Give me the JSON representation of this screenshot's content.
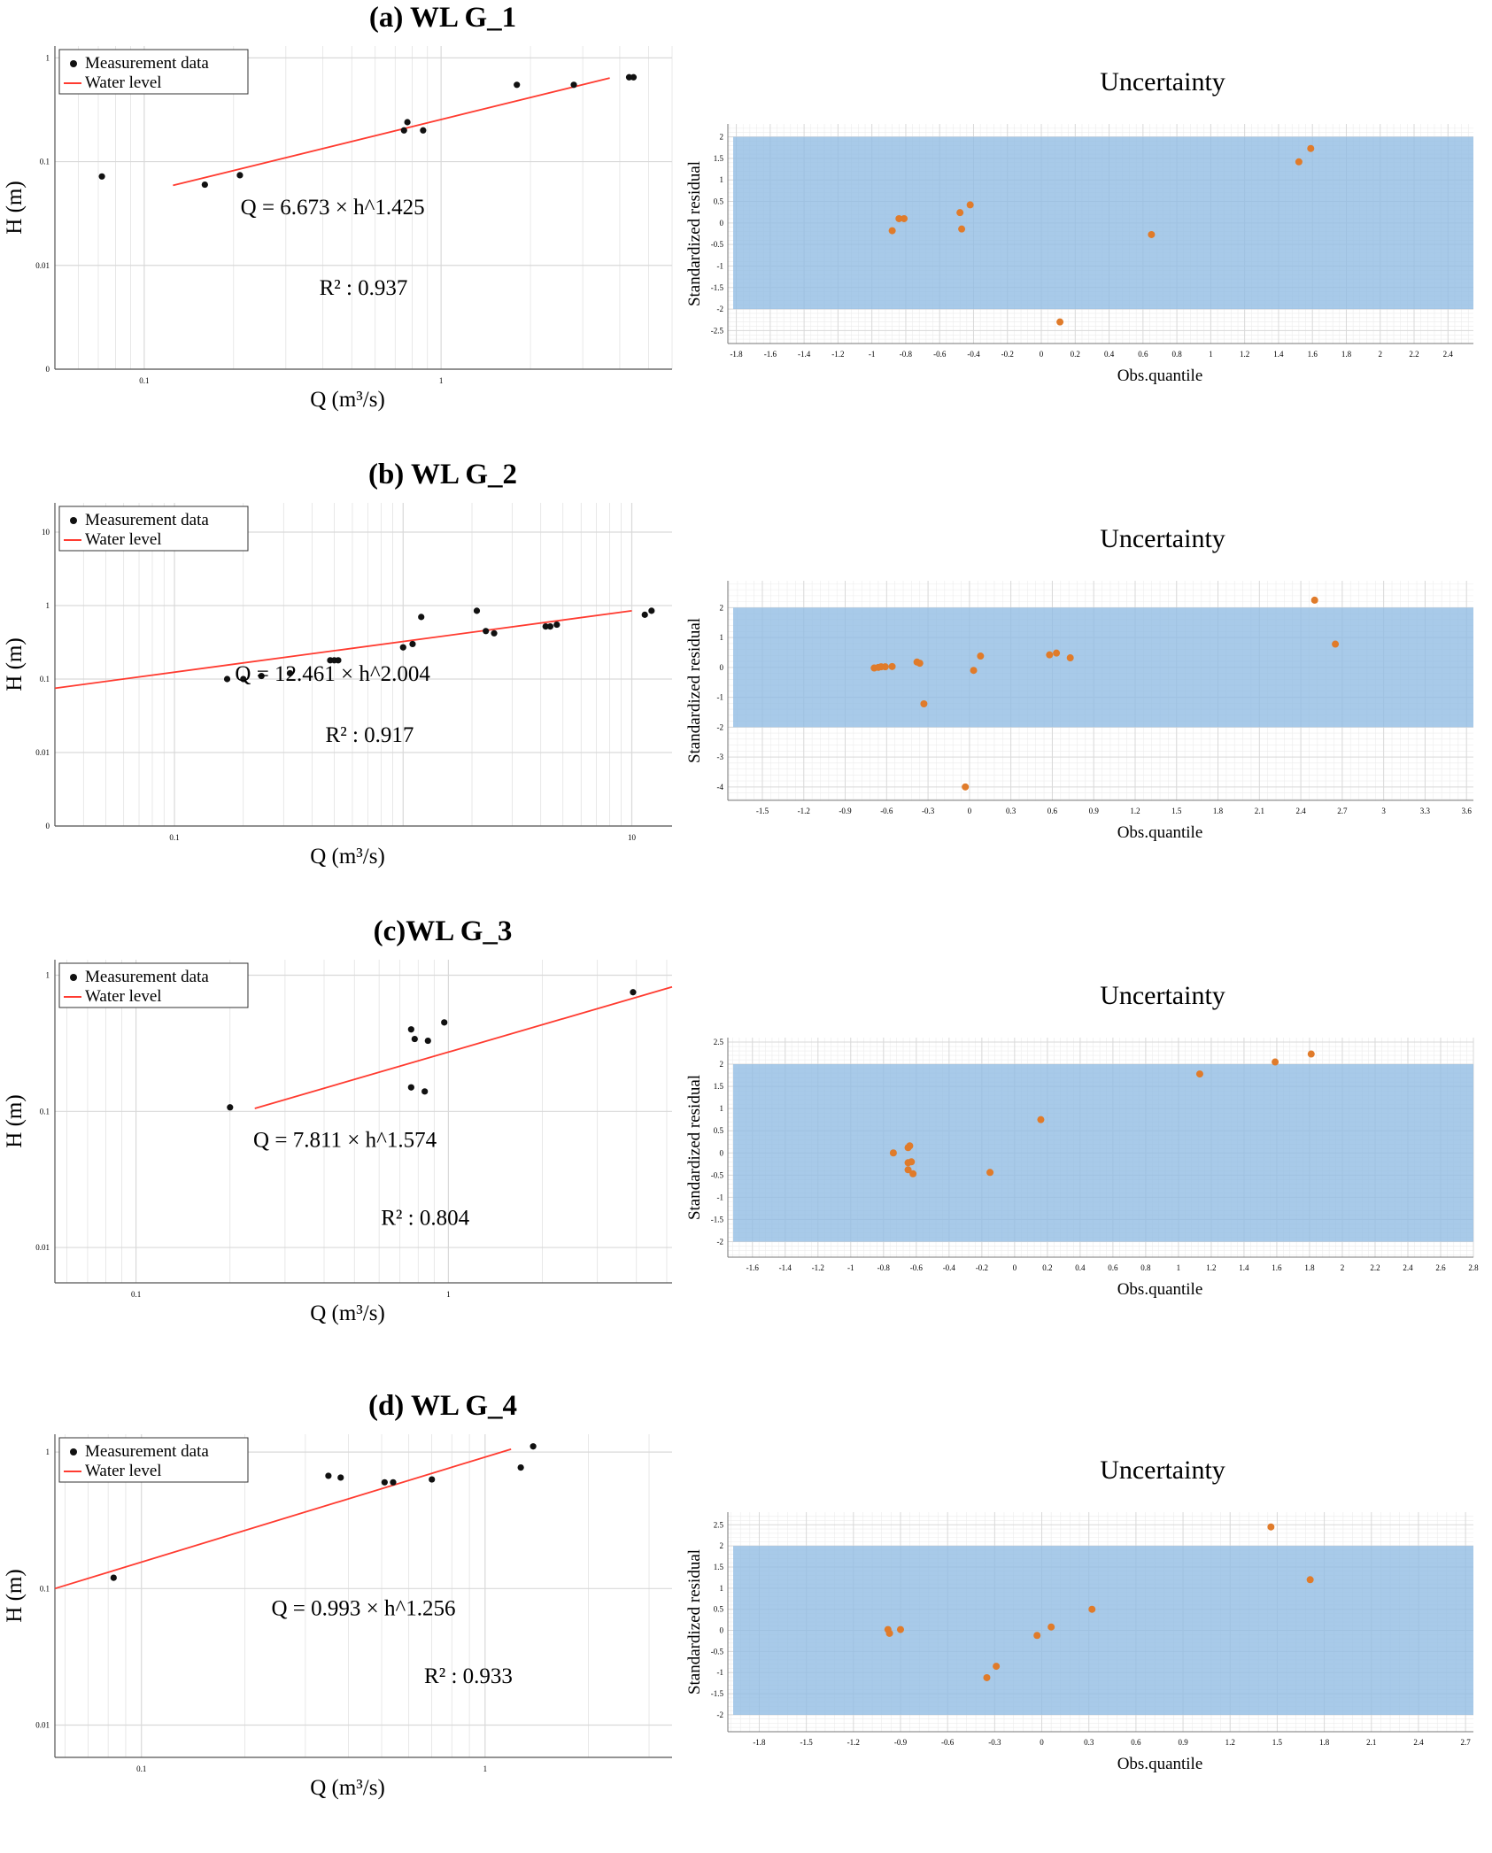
{
  "colors": {
    "measure_dot": "#111111",
    "fit_line": "#ff3b30",
    "band_fill": "#8fbbe3",
    "residual_dot": "#e07b2a",
    "grid": "#d9d9d9"
  },
  "chart_data": [
    {
      "panel_title": "(a) WL G_1",
      "rating": {
        "type": "scatter",
        "xscale": "log",
        "yscale": "log",
        "xlim": [
          0.05,
          6
        ],
        "ylim": [
          0.001,
          1.3
        ],
        "xticks": [
          {
            "v": 0.1,
            "label": "0.1"
          },
          {
            "v": 1,
            "label": "1"
          }
        ],
        "yticks": [
          {
            "v": 0.001,
            "label": "0"
          },
          {
            "v": 0.01,
            "label": "0.01"
          },
          {
            "v": 0.1,
            "label": "0.1"
          },
          {
            "v": 1,
            "label": "1"
          }
        ],
        "xlabel": "Q (m³/s)",
        "ylabel": "H (m)",
        "legend": {
          "items": [
            "Measurement data",
            "Water level"
          ],
          "position": "top-left"
        },
        "points": [
          [
            0.072,
            0.072
          ],
          [
            0.16,
            0.06
          ],
          [
            0.21,
            0.074
          ],
          [
            0.75,
            0.2
          ],
          [
            0.77,
            0.24
          ],
          [
            0.87,
            0.2
          ],
          [
            1.8,
            0.55
          ],
          [
            2.8,
            0.55
          ],
          [
            4.3,
            0.65
          ],
          [
            4.45,
            0.65
          ]
        ],
        "line": [
          [
            0.125,
            0.059
          ],
          [
            3.7,
            0.64
          ]
        ],
        "equation": "Q = 6.673 × h^1.425",
        "r2": "R² : 0.937",
        "equation_pos": {
          "fx": 0.45,
          "fy": 0.52
        },
        "r2_pos": {
          "fx": 0.5,
          "fy": 0.77
        }
      },
      "uncertainty": {
        "type": "scatter",
        "title": "Uncertainty",
        "xlim": [
          -1.85,
          2.55
        ],
        "ylim": [
          -2.8,
          2.3
        ],
        "xticks": [
          -1.8,
          -1.6,
          -1.4,
          -1.2,
          -1,
          -0.8,
          -0.6,
          -0.4,
          -0.2,
          0,
          0.2,
          0.4,
          0.6,
          0.8,
          1,
          1.2,
          1.4,
          1.6,
          1.8,
          2,
          2.2,
          2.4
        ],
        "yticks": [
          -2.5,
          -2,
          -1.5,
          -1,
          -0.5,
          0,
          0.5,
          1,
          1.5,
          2
        ],
        "band": [
          -2,
          2
        ],
        "xlabel": "Obs.quantile",
        "ylabel": "Standardized residual",
        "points": [
          [
            -0.88,
            -0.18
          ],
          [
            -0.84,
            0.1
          ],
          [
            -0.81,
            0.1
          ],
          [
            -0.48,
            0.24
          ],
          [
            -0.47,
            -0.14
          ],
          [
            -0.42,
            0.42
          ],
          [
            0.65,
            -0.27
          ],
          [
            0.11,
            -2.3
          ],
          [
            1.52,
            1.42
          ],
          [
            1.59,
            1.73
          ]
        ]
      }
    },
    {
      "panel_title": "(b) WL G_2",
      "rating": {
        "type": "scatter",
        "xscale": "log",
        "yscale": "log",
        "xlim": [
          0.03,
          15
        ],
        "ylim": [
          0.001,
          25
        ],
        "xticks": [
          {
            "v": 0.1,
            "label": "0.1"
          },
          {
            "v": 10,
            "label": "10"
          }
        ],
        "yticks": [
          {
            "v": 0.001,
            "label": "0"
          },
          {
            "v": 0.01,
            "label": "0.01"
          },
          {
            "v": 0.1,
            "label": "0.1"
          },
          {
            "v": 1,
            "label": "1"
          },
          {
            "v": 10,
            "label": "10"
          }
        ],
        "xlabel": "Q (m³/s)",
        "ylabel": "H (m)",
        "legend": {
          "items": [
            "Measurement data",
            "Water level"
          ],
          "position": "top-left"
        },
        "points": [
          [
            0.17,
            0.1
          ],
          [
            0.2,
            0.1
          ],
          [
            0.24,
            0.11
          ],
          [
            0.32,
            0.12
          ],
          [
            0.48,
            0.18
          ],
          [
            0.5,
            0.18
          ],
          [
            0.52,
            0.18
          ],
          [
            1.0,
            0.27
          ],
          [
            1.1,
            0.3
          ],
          [
            1.2,
            0.7
          ],
          [
            2.1,
            0.85
          ],
          [
            2.3,
            0.45
          ],
          [
            2.5,
            0.42
          ],
          [
            4.2,
            0.52
          ],
          [
            4.4,
            0.52
          ],
          [
            4.7,
            0.55
          ],
          [
            11.4,
            0.75
          ],
          [
            12.2,
            0.85
          ]
        ],
        "line": [
          [
            0.03,
            0.075
          ],
          [
            10,
            0.85
          ]
        ],
        "equation": "Q = 12.461 × h^2.004",
        "r2": "R² : 0.917",
        "equation_pos": {
          "fx": 0.45,
          "fy": 0.55
        },
        "r2_pos": {
          "fx": 0.51,
          "fy": 0.74
        }
      },
      "uncertainty": {
        "type": "scatter",
        "title": "Uncertainty",
        "xlim": [
          -1.75,
          3.65
        ],
        "ylim": [
          -4.45,
          2.9
        ],
        "xticks": [
          -1.5,
          -1.2,
          -0.9,
          -0.6,
          -0.3,
          0,
          0.3,
          0.6,
          0.9,
          1.2,
          1.5,
          1.8,
          2.1,
          2.4,
          2.7,
          3,
          3.3,
          3.6
        ],
        "yticks": [
          -4,
          -3,
          -2,
          -1,
          0,
          1,
          2
        ],
        "band": [
          -2,
          2
        ],
        "xlabel": "Obs.quantile",
        "ylabel": "Standardized residual",
        "points": [
          [
            -0.69,
            -0.02
          ],
          [
            -0.66,
            0.0
          ],
          [
            -0.64,
            0.02
          ],
          [
            -0.61,
            0.02
          ],
          [
            -0.56,
            0.03
          ],
          [
            -0.38,
            0.18
          ],
          [
            -0.36,
            0.14
          ],
          [
            -0.33,
            -1.22
          ],
          [
            -0.03,
            -4.0
          ],
          [
            0.03,
            -0.1
          ],
          [
            0.08,
            0.38
          ],
          [
            0.58,
            0.42
          ],
          [
            0.63,
            0.48
          ],
          [
            0.73,
            0.32
          ],
          [
            2.5,
            2.25
          ],
          [
            2.65,
            0.78
          ]
        ]
      }
    },
    {
      "panel_title": "(c)WL G_3",
      "rating": {
        "type": "scatter",
        "xscale": "log",
        "yscale": "log",
        "xlim": [
          0.055,
          5.2
        ],
        "ylim": [
          0.0055,
          1.3
        ],
        "xticks": [
          {
            "v": 0.1,
            "label": "0.1"
          },
          {
            "v": 1,
            "label": "1"
          }
        ],
        "yticks": [
          {
            "v": 0.01,
            "label": "0.01"
          },
          {
            "v": 0.1,
            "label": "0.1"
          },
          {
            "v": 1,
            "label": "1"
          }
        ],
        "xlabel": "Q (m³/s)",
        "ylabel": "H (m)",
        "legend": {
          "items": [
            "Measurement data",
            "Water level"
          ],
          "position": "top-left"
        },
        "points": [
          [
            0.2,
            0.107
          ],
          [
            0.76,
            0.15
          ],
          [
            0.76,
            0.4
          ],
          [
            0.78,
            0.34
          ],
          [
            0.84,
            0.14
          ],
          [
            0.86,
            0.33
          ],
          [
            0.97,
            0.45
          ],
          [
            3.9,
            0.75
          ]
        ],
        "line": [
          [
            0.24,
            0.105
          ],
          [
            5.2,
            0.82
          ]
        ],
        "equation": "Q = 7.811  × h^1.574",
        "r2": "R² : 0.804",
        "equation_pos": {
          "fx": 0.47,
          "fy": 0.58
        },
        "r2_pos": {
          "fx": 0.6,
          "fy": 0.82
        }
      },
      "uncertainty": {
        "type": "scatter",
        "title": "Uncertainty",
        "xlim": [
          -1.75,
          2.8
        ],
        "ylim": [
          -2.35,
          2.6
        ],
        "xticks": [
          -1.6,
          -1.4,
          -1.2,
          -1,
          -0.8,
          -0.6,
          -0.4,
          -0.2,
          0,
          0.2,
          0.4,
          0.6,
          0.8,
          1,
          1.2,
          1.4,
          1.6,
          1.8,
          2,
          2.2,
          2.4,
          2.6,
          2.8
        ],
        "yticks": [
          -2,
          -1.5,
          -1,
          -0.5,
          0,
          0.5,
          1,
          1.5,
          2,
          2.5
        ],
        "band": [
          -2,
          2
        ],
        "xlabel": "Obs.quantile",
        "ylabel": "Standardized residual",
        "points": [
          [
            -0.74,
            0.0
          ],
          [
            -0.65,
            0.12
          ],
          [
            -0.64,
            0.16
          ],
          [
            -0.65,
            -0.22
          ],
          [
            -0.63,
            -0.2
          ],
          [
            -0.65,
            -0.38
          ],
          [
            -0.62,
            -0.47
          ],
          [
            -0.15,
            -0.44
          ],
          [
            0.16,
            0.75
          ],
          [
            1.13,
            1.78
          ],
          [
            1.59,
            2.05
          ],
          [
            1.81,
            2.23
          ]
        ]
      }
    },
    {
      "panel_title": "(d) WL G_4",
      "rating": {
        "type": "scatter",
        "xscale": "log",
        "yscale": "log",
        "xlim": [
          0.056,
          3.5
        ],
        "ylim": [
          0.0058,
          1.35
        ],
        "xticks": [
          {
            "v": 0.1,
            "label": "0.1"
          },
          {
            "v": 1,
            "label": "1"
          }
        ],
        "yticks": [
          {
            "v": 0.01,
            "label": "0.01"
          },
          {
            "v": 0.1,
            "label": "0.1"
          },
          {
            "v": 1,
            "label": "1"
          }
        ],
        "xlabel": "Q (m³/s)",
        "ylabel": "H (m)",
        "legend": {
          "items": [
            "Measurement data",
            "Water level"
          ],
          "position": "top-left"
        },
        "points": [
          [
            0.083,
            0.12
          ],
          [
            0.35,
            0.67
          ],
          [
            0.38,
            0.65
          ],
          [
            0.51,
            0.6
          ],
          [
            0.54,
            0.6
          ],
          [
            0.7,
            0.63
          ],
          [
            1.27,
            0.77
          ],
          [
            1.38,
            1.1
          ]
        ],
        "line": [
          [
            0.056,
            0.1
          ],
          [
            1.19,
            1.05
          ]
        ],
        "equation": "Q = 0.993 × h^1.256",
        "r2": "R² : 0.933",
        "equation_pos": {
          "fx": 0.5,
          "fy": 0.56
        },
        "r2_pos": {
          "fx": 0.67,
          "fy": 0.77
        }
      },
      "uncertainty": {
        "type": "scatter",
        "title": "Uncertainty",
        "xlim": [
          -2.0,
          2.75
        ],
        "ylim": [
          -2.4,
          2.8
        ],
        "xticks": [
          -1.8,
          -1.5,
          -1.2,
          -0.9,
          -0.6,
          -0.3,
          0,
          0.3,
          0.6,
          0.9,
          1.2,
          1.5,
          1.8,
          2.1,
          2.4,
          2.7
        ],
        "yticks": [
          -2,
          -1.5,
          -1,
          -0.5,
          0,
          0.5,
          1,
          1.5,
          2,
          2.5
        ],
        "band": [
          -2,
          2
        ],
        "xlabel": "Obs.quantile",
        "ylabel": "Standardized residual",
        "points": [
          [
            -0.98,
            0.02
          ],
          [
            -0.97,
            -0.07
          ],
          [
            -0.9,
            0.02
          ],
          [
            -0.35,
            -1.12
          ],
          [
            -0.29,
            -0.85
          ],
          [
            -0.03,
            -0.12
          ],
          [
            0.06,
            0.08
          ],
          [
            0.32,
            0.5
          ],
          [
            1.46,
            2.45
          ],
          [
            1.71,
            1.2
          ]
        ]
      }
    }
  ]
}
